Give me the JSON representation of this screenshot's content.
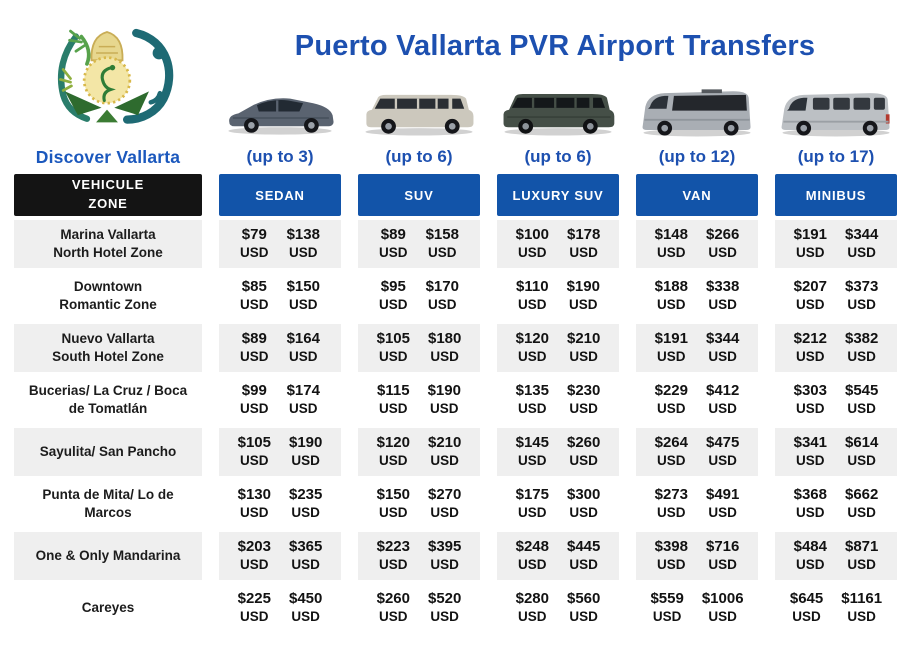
{
  "title": "Puerto Vallarta PVR Airport Transfers",
  "brand": {
    "name": "Discover Vallarta"
  },
  "zone_header": {
    "line1": "VEHICULE",
    "line2": "ZONE"
  },
  "currency": "USD",
  "vehicles": [
    {
      "label": "SEDAN",
      "capacity": "(up to 3)",
      "icon": "sedan-icon"
    },
    {
      "label": "SUV",
      "capacity": "(up to 6)",
      "icon": "suv-icon"
    },
    {
      "label": "LUXURY SUV",
      "capacity": "(up to 6)",
      "icon": "luxury-suv-icon"
    },
    {
      "label": "VAN",
      "capacity": "(up to 12)",
      "icon": "van-icon"
    },
    {
      "label": "MINIBUS",
      "capacity": "(up to 17)",
      "icon": "minibus-icon"
    }
  ],
  "rows": [
    {
      "zone_line1": "Marina Vallarta",
      "zone_line2": "North Hotel Zone",
      "prices": [
        [
          "$79",
          "$138"
        ],
        [
          "$89",
          "$158"
        ],
        [
          "$100",
          "$178"
        ],
        [
          "$148",
          "$266"
        ],
        [
          "$191",
          "$344"
        ]
      ]
    },
    {
      "zone_line1": "Downtown",
      "zone_line2": "Romantic Zone",
      "prices": [
        [
          "$85",
          "$150"
        ],
        [
          "$95",
          "$170"
        ],
        [
          "$110",
          "$190"
        ],
        [
          "$188",
          "$338"
        ],
        [
          "$207",
          "$373"
        ]
      ]
    },
    {
      "zone_line1": "Nuevo Vallarta",
      "zone_line2": "South Hotel Zone",
      "prices": [
        [
          "$89",
          "$164"
        ],
        [
          "$105",
          "$180"
        ],
        [
          "$120",
          "$210"
        ],
        [
          "$191",
          "$344"
        ],
        [
          "$212",
          "$382"
        ]
      ]
    },
    {
      "zone_line1": "Bucerias/ La Cruz / Boca",
      "zone_line2": "de Tomatlán",
      "prices": [
        [
          "$99",
          "$174"
        ],
        [
          "$115",
          "$190"
        ],
        [
          "$135",
          "$230"
        ],
        [
          "$229",
          "$412"
        ],
        [
          "$303",
          "$545"
        ]
      ]
    },
    {
      "zone_line1": "Sayulita/ San Pancho",
      "zone_line2": "",
      "prices": [
        [
          "$105",
          "$190"
        ],
        [
          "$120",
          "$210"
        ],
        [
          "$145",
          "$260"
        ],
        [
          "$264",
          "$475"
        ],
        [
          "$341",
          "$614"
        ]
      ]
    },
    {
      "zone_line1": "Punta de Mita/ Lo de",
      "zone_line2": "Marcos",
      "prices": [
        [
          "$130",
          "$235"
        ],
        [
          "$150",
          "$270"
        ],
        [
          "$175",
          "$300"
        ],
        [
          "$273",
          "$491"
        ],
        [
          "$368",
          "$662"
        ]
      ]
    },
    {
      "zone_line1": "One & Only Mandarina",
      "zone_line2": "",
      "prices": [
        [
          "$203",
          "$365"
        ],
        [
          "$223",
          "$395"
        ],
        [
          "$248",
          "$445"
        ],
        [
          "$398",
          "$716"
        ],
        [
          "$484",
          "$871"
        ]
      ]
    },
    {
      "zone_line1": "Careyes",
      "zone_line2": "",
      "prices": [
        [
          "$225",
          "$450"
        ],
        [
          "$260",
          "$520"
        ],
        [
          "$280",
          "$560"
        ],
        [
          "$559",
          "$1006"
        ],
        [
          "$645",
          "$1161"
        ]
      ]
    }
  ],
  "colors": {
    "brand_blue": "#1d50b0",
    "button_blue": "#1254a9",
    "header_black": "#141414",
    "stripe_gray": "#efefef"
  }
}
